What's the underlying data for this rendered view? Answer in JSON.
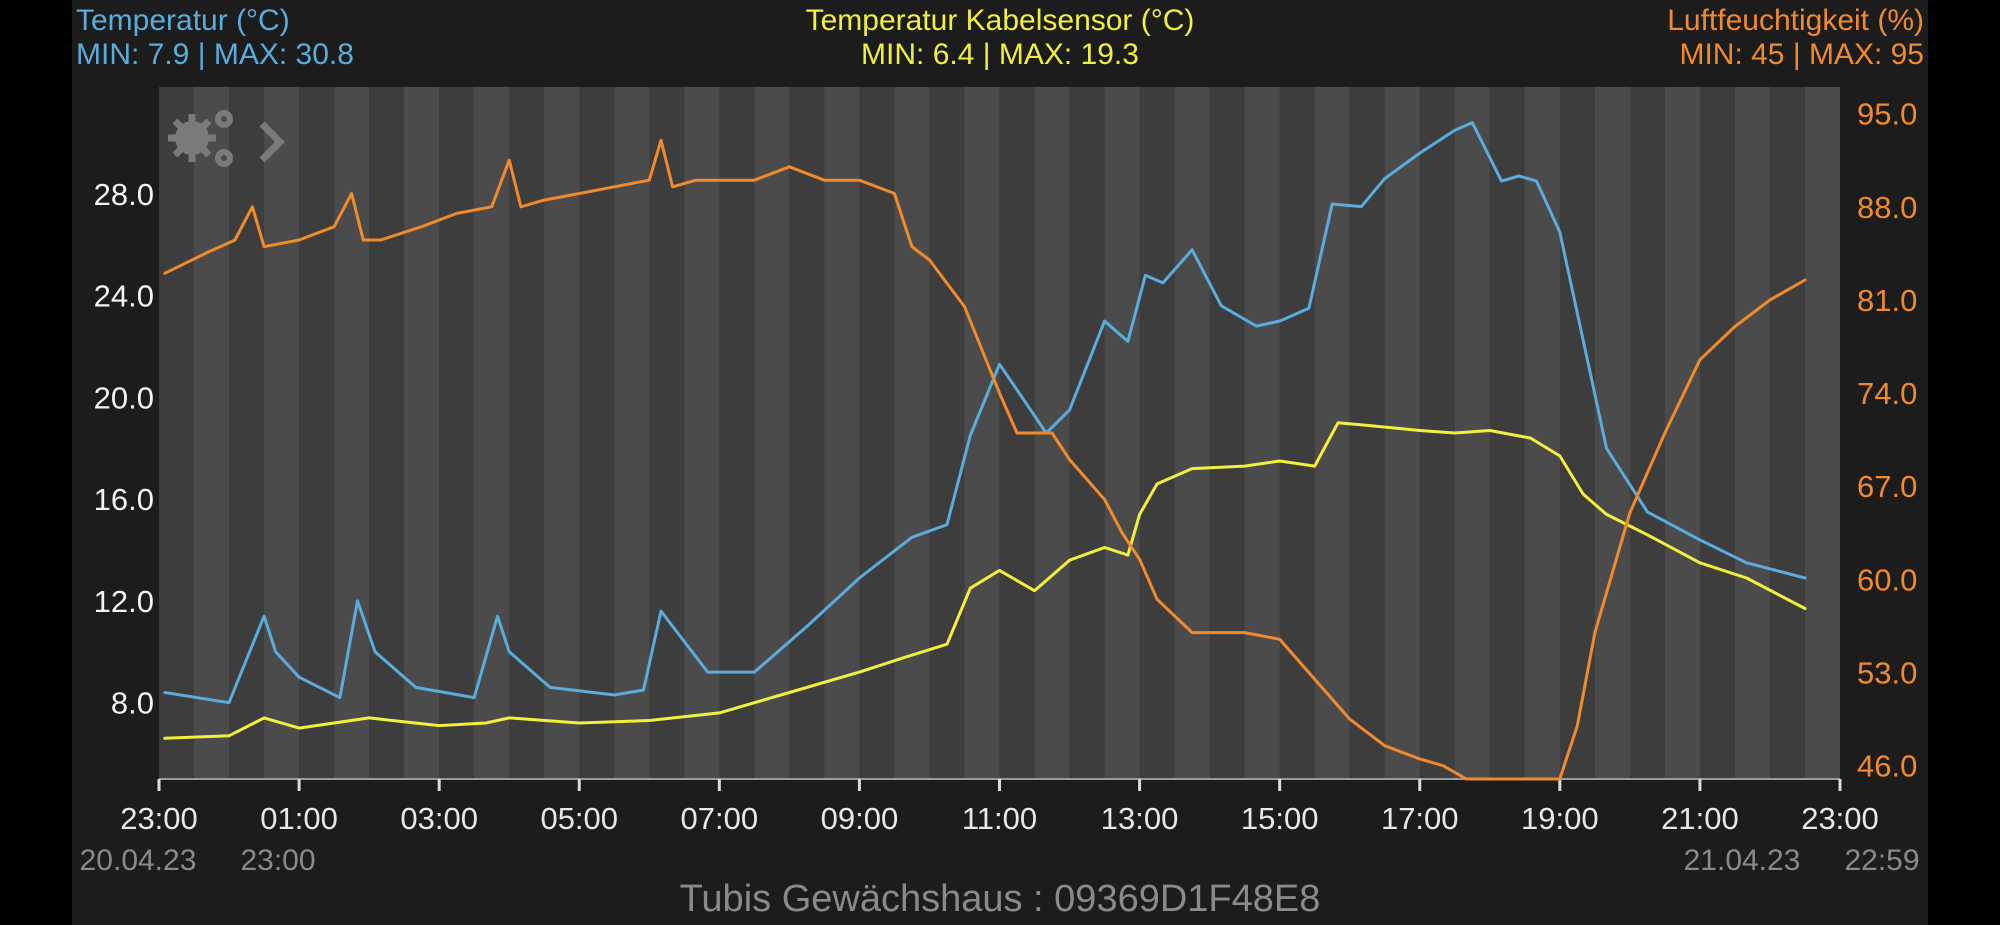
{
  "header": {
    "temp": {
      "title": "Temperatur (°C)",
      "minmax": "MIN: 7.9 | MAX: 30.8"
    },
    "cable": {
      "title": "Temperatur Kabelsensor (°C)",
      "minmax": "MIN: 6.4 | MAX: 19.3"
    },
    "humidity": {
      "title": "Luftfeuchtigkeit (%)",
      "minmax": "MIN: 45 | MAX: 95"
    }
  },
  "footer": "Tubis Gewächshaus : 09369D1F48E8",
  "icons": [
    "gears-icon",
    "chevron-right-icon"
  ],
  "chart_data": {
    "type": "line",
    "x_start": "2023-04-20 23:00",
    "x_end": "2023-04-21 23:00",
    "x_tick_labels": [
      "23:00",
      "01:00",
      "03:00",
      "05:00",
      "07:00",
      "09:00",
      "11:00",
      "13:00",
      "15:00",
      "17:00",
      "19:00",
      "21:00",
      "23:00"
    ],
    "date_labels": {
      "start_date": "20.04.23",
      "start_time": "23:00",
      "end_date": "21.04.23",
      "end_time": "22:59"
    },
    "y_left": {
      "range": [
        5.0,
        32.2
      ],
      "ticks": [
        8.0,
        12.0,
        16.0,
        20.0,
        24.0,
        28.0
      ],
      "tick_labels": [
        "8.0",
        "12.0",
        "16.0",
        "20.0",
        "24.0",
        "28.0"
      ]
    },
    "y_right": {
      "range": [
        45.0,
        97.0
      ],
      "ticks": [
        46.0,
        53.0,
        60.0,
        67.0,
        74.0,
        81.0,
        88.0,
        95.0
      ],
      "tick_labels": [
        "46.0",
        "53.0",
        "60.0",
        "67.0",
        "74.0",
        "81.0",
        "88.0",
        "95.0"
      ]
    },
    "grid": "alternating vertical bands every 30 minutes",
    "colors": {
      "temp": "#5aacdc",
      "cable": "#f2f03c",
      "humidity": "#f08a2c",
      "plot_bg": "#4b4b4b",
      "plot_bg_alt": "#3d3d3d"
    },
    "series": [
      {
        "name": "Temperatur (°C)",
        "axis": "left",
        "color": "#5aacdc",
        "x": [
          "23:05",
          "00:00",
          "00:30",
          "00:40",
          "01:00",
          "01:35",
          "01:50",
          "02:05",
          "02:40",
          "03:30",
          "03:50",
          "04:00",
          "04:35",
          "05:30",
          "05:55",
          "06:10",
          "06:50",
          "07:30",
          "08:15",
          "09:00",
          "09:45",
          "10:15",
          "10:35",
          "11:00",
          "11:15",
          "11:40",
          "12:00",
          "12:30",
          "12:50",
          "13:05",
          "13:20",
          "13:45",
          "14:10",
          "14:40",
          "15:00",
          "15:25",
          "15:45",
          "16:10",
          "16:30",
          "17:00",
          "17:30",
          "17:45",
          "18:10",
          "18:25",
          "18:40",
          "19:00",
          "19:40",
          "20:15",
          "21:00",
          "21:40",
          "22:30"
        ],
        "y": [
          8.4,
          8.0,
          11.4,
          10.0,
          9.0,
          8.2,
          12.0,
          10.0,
          8.6,
          8.2,
          11.4,
          10.0,
          8.6,
          8.3,
          8.5,
          11.6,
          9.2,
          9.2,
          11.0,
          12.9,
          14.5,
          15.0,
          18.5,
          21.3,
          20.3,
          18.6,
          19.5,
          23.0,
          22.2,
          24.8,
          24.5,
          25.8,
          23.6,
          22.8,
          23.0,
          23.5,
          27.6,
          27.5,
          28.6,
          29.6,
          30.5,
          30.8,
          28.5,
          28.7,
          28.5,
          26.5,
          18.0,
          15.5,
          14.4,
          13.5,
          12.9
        ]
      },
      {
        "name": "Temperatur Kabelsensor (°C)",
        "axis": "left",
        "color": "#f2f03c",
        "x": [
          "23:05",
          "00:00",
          "00:30",
          "01:00",
          "02:00",
          "03:00",
          "03:40",
          "04:00",
          "05:00",
          "06:00",
          "07:00",
          "08:00",
          "09:00",
          "09:40",
          "10:15",
          "10:35",
          "11:00",
          "11:30",
          "12:00",
          "12:30",
          "12:50",
          "13:00",
          "13:15",
          "13:45",
          "14:30",
          "15:00",
          "15:30",
          "15:50",
          "16:15",
          "17:00",
          "17:30",
          "18:00",
          "18:35",
          "19:00",
          "19:20",
          "19:40",
          "20:15",
          "21:00",
          "21:40",
          "22:30"
        ],
        "y": [
          6.6,
          6.7,
          7.4,
          7.0,
          7.4,
          7.1,
          7.2,
          7.4,
          7.2,
          7.3,
          7.6,
          8.4,
          9.2,
          9.8,
          10.3,
          12.5,
          13.2,
          12.4,
          13.6,
          14.1,
          13.8,
          15.4,
          16.6,
          17.2,
          17.3,
          17.5,
          17.3,
          19.0,
          18.9,
          18.7,
          18.6,
          18.7,
          18.4,
          17.7,
          16.2,
          15.4,
          14.6,
          13.5,
          12.9,
          11.7
        ]
      },
      {
        "name": "Luftfeuchtigkeit (%)",
        "axis": "right",
        "color": "#f08a2c",
        "x": [
          "23:05",
          "23:40",
          "00:05",
          "00:20",
          "00:30",
          "01:00",
          "01:30",
          "01:45",
          "01:55",
          "02:10",
          "02:45",
          "03:15",
          "03:45",
          "04:00",
          "04:10",
          "04:30",
          "05:00",
          "05:30",
          "06:00",
          "06:10",
          "06:20",
          "06:40",
          "07:30",
          "08:00",
          "08:30",
          "09:00",
          "09:30",
          "09:45",
          "10:00",
          "10:30",
          "11:00",
          "11:15",
          "11:45",
          "12:00",
          "12:30",
          "12:45",
          "13:00",
          "13:15",
          "13:45",
          "14:30",
          "15:00",
          "15:30",
          "16:00",
          "16:30",
          "17:00",
          "17:20",
          "17:40",
          "18:00",
          "18:30",
          "19:00",
          "19:15",
          "19:30",
          "20:00",
          "20:30",
          "21:00",
          "21:30",
          "22:00",
          "22:30"
        ],
        "y": [
          83.0,
          84.5,
          85.5,
          88.0,
          85.0,
          85.5,
          86.5,
          89.0,
          85.5,
          85.5,
          86.5,
          87.5,
          88.0,
          91.5,
          88.0,
          88.5,
          89.0,
          89.5,
          90.0,
          93.0,
          89.5,
          90.0,
          90.0,
          91.0,
          90.0,
          90.0,
          89.0,
          85.0,
          84.0,
          80.5,
          74.0,
          71.0,
          71.0,
          69.0,
          66.0,
          63.5,
          61.5,
          58.5,
          56.0,
          56.0,
          55.5,
          52.5,
          49.5,
          47.5,
          46.5,
          46.0,
          45.0,
          45.0,
          45.0,
          45.0,
          49.0,
          56.0,
          65.0,
          71.0,
          76.5,
          79.0,
          81.0,
          82.5
        ]
      }
    ]
  }
}
